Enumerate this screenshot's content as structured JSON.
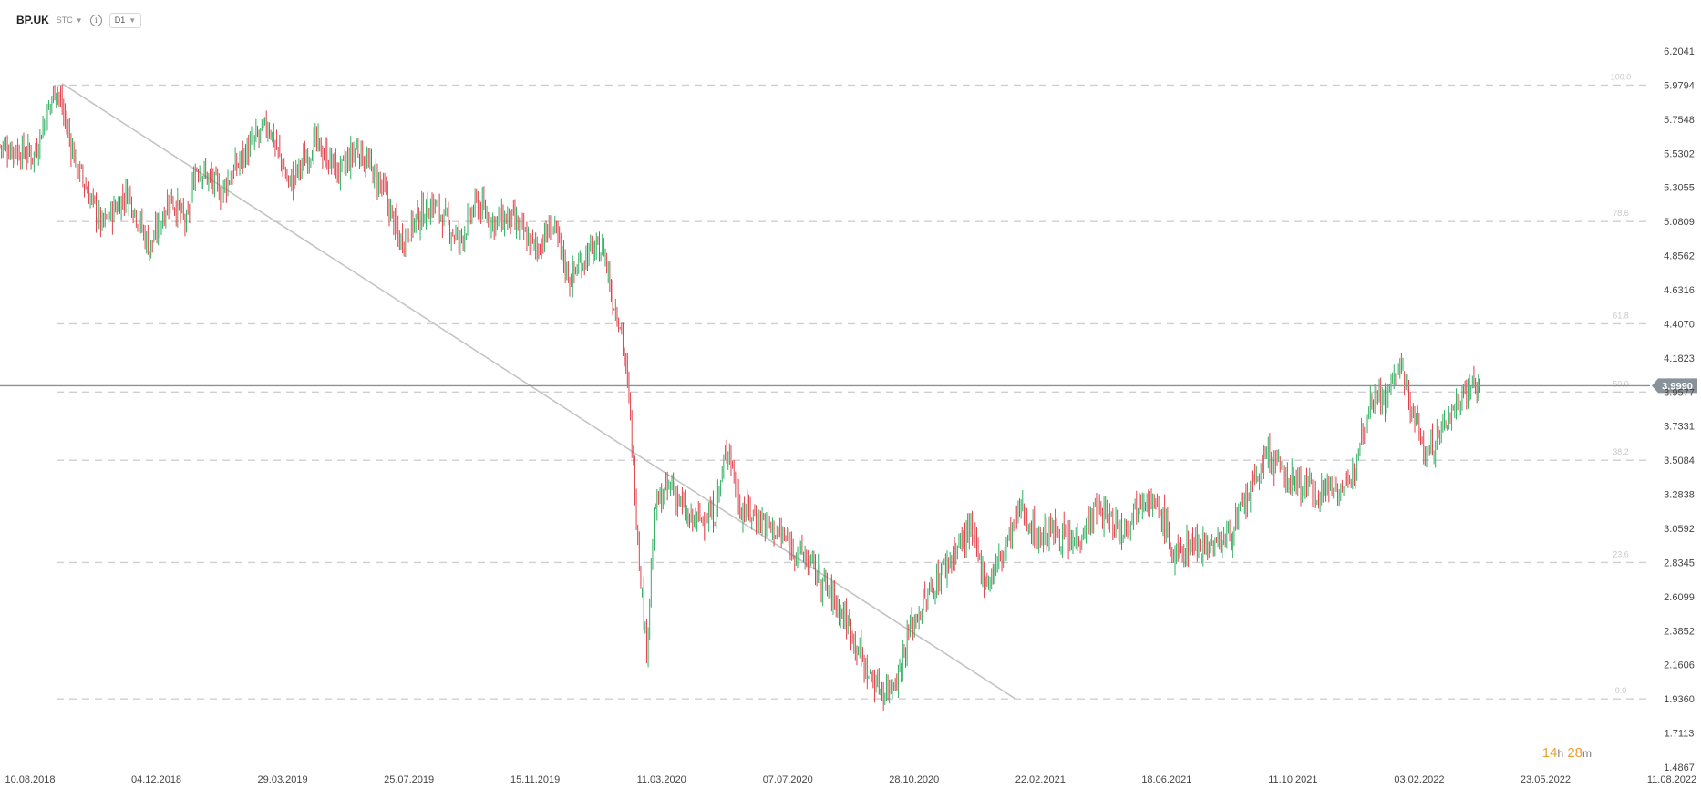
{
  "toolbar": {
    "symbol": "BP.UK",
    "subtype": "STC",
    "subtype_caret_icon": "chevron-down-icon",
    "info_icon": "info-icon",
    "timeframe": "D1",
    "timeframe_caret_icon": "chevron-down-icon"
  },
  "countdown": {
    "hours": "14",
    "h_unit": "h",
    "minutes": "28",
    "m_unit": "m"
  },
  "chart_data": {
    "type": "candlestick",
    "y_ticks": [
      "6.2041",
      "5.9794",
      "5.7548",
      "5.5302",
      "5.3055",
      "5.0809",
      "4.8562",
      "4.6316",
      "4.4070",
      "4.1823",
      "3.9577",
      "3.7331",
      "3.5084",
      "3.2838",
      "3.0592",
      "2.8345",
      "2.6099",
      "2.3852",
      "2.1606",
      "1.9360",
      "1.7113",
      "1.4867"
    ],
    "ylim": [
      1.4867,
      6.2041
    ],
    "x_ticks": [
      "10.08.2018",
      "04.12.2018",
      "29.03.2019",
      "25.07.2019",
      "15.11.2019",
      "11.03.2020",
      "07.07.2020",
      "28.10.2020",
      "22.02.2021",
      "18.06.2021",
      "11.10.2021",
      "03.02.2022",
      "23.05.2022",
      "11.08.2022"
    ],
    "current_price": "3.9990",
    "fib_levels": [
      {
        "label": "100.0",
        "price": 5.9794
      },
      {
        "label": "78.6",
        "price": 5.0809
      },
      {
        "label": "61.8",
        "price": 4.407
      },
      {
        "label": "50.0",
        "price": 3.9577
      },
      {
        "label": "38.2",
        "price": 3.5084
      },
      {
        "label": "23.6",
        "price": 2.8345
      },
      {
        "label": "0.0",
        "price": 1.936
      }
    ],
    "trendline": {
      "start": [
        0,
        5.99
      ],
      "end": [
        0.597,
        1.936
      ]
    },
    "path": [
      [
        0.0,
        5.58
      ],
      [
        0.02,
        5.52
      ],
      [
        0.033,
        5.98
      ],
      [
        0.045,
        5.45
      ],
      [
        0.06,
        5.05
      ],
      [
        0.075,
        5.28
      ],
      [
        0.088,
        4.9
      ],
      [
        0.1,
        5.25
      ],
      [
        0.11,
        5.05
      ],
      [
        0.115,
        5.45
      ],
      [
        0.13,
        5.28
      ],
      [
        0.145,
        5.55
      ],
      [
        0.158,
        5.72
      ],
      [
        0.17,
        5.32
      ],
      [
        0.185,
        5.6
      ],
      [
        0.2,
        5.4
      ],
      [
        0.21,
        5.57
      ],
      [
        0.225,
        5.3
      ],
      [
        0.235,
        4.95
      ],
      [
        0.245,
        5.1
      ],
      [
        0.255,
        5.2
      ],
      [
        0.27,
        4.95
      ],
      [
        0.28,
        5.2
      ],
      [
        0.29,
        5.08
      ],
      [
        0.3,
        5.1
      ],
      [
        0.315,
        4.9
      ],
      [
        0.325,
        5.05
      ],
      [
        0.335,
        4.7
      ],
      [
        0.345,
        4.87
      ],
      [
        0.355,
        4.9
      ],
      [
        0.36,
        4.58
      ],
      [
        0.365,
        4.4
      ],
      [
        0.37,
        3.88
      ],
      [
        0.375,
        3.0
      ],
      [
        0.38,
        2.25
      ],
      [
        0.385,
        3.2
      ],
      [
        0.395,
        3.35
      ],
      [
        0.405,
        3.1
      ],
      [
        0.42,
        3.15
      ],
      [
        0.428,
        3.62
      ],
      [
        0.435,
        3.2
      ],
      [
        0.45,
        3.1
      ],
      [
        0.465,
        2.95
      ],
      [
        0.475,
        2.85
      ],
      [
        0.49,
        2.6
      ],
      [
        0.5,
        2.4
      ],
      [
        0.51,
        2.1
      ],
      [
        0.52,
        1.98
      ],
      [
        0.528,
        2.1
      ],
      [
        0.535,
        2.4
      ],
      [
        0.545,
        2.6
      ],
      [
        0.555,
        2.8
      ],
      [
        0.57,
        3.05
      ],
      [
        0.58,
        2.7
      ],
      [
        0.59,
        2.9
      ],
      [
        0.6,
        3.2
      ],
      [
        0.61,
        3.0
      ],
      [
        0.62,
        3.05
      ],
      [
        0.63,
        2.95
      ],
      [
        0.645,
        3.18
      ],
      [
        0.66,
        3.05
      ],
      [
        0.672,
        3.3
      ],
      [
        0.685,
        3.1
      ],
      [
        0.69,
        2.85
      ],
      [
        0.7,
        2.97
      ],
      [
        0.715,
        2.95
      ],
      [
        0.725,
        3.05
      ],
      [
        0.735,
        3.3
      ],
      [
        0.745,
        3.55
      ],
      [
        0.755,
        3.4
      ],
      [
        0.765,
        3.35
      ],
      [
        0.775,
        3.3
      ],
      [
        0.785,
        3.35
      ],
      [
        0.793,
        3.3
      ],
      [
        0.8,
        3.7
      ],
      [
        0.808,
        3.98
      ],
      [
        0.815,
        3.9
      ],
      [
        0.822,
        4.15
      ],
      [
        0.83,
        3.85
      ],
      [
        0.838,
        3.55
      ],
      [
        0.845,
        3.65
      ],
      [
        0.852,
        3.8
      ],
      [
        0.86,
        3.95
      ],
      [
        0.866,
        4.02
      ],
      [
        0.87,
        3.999
      ]
    ]
  }
}
